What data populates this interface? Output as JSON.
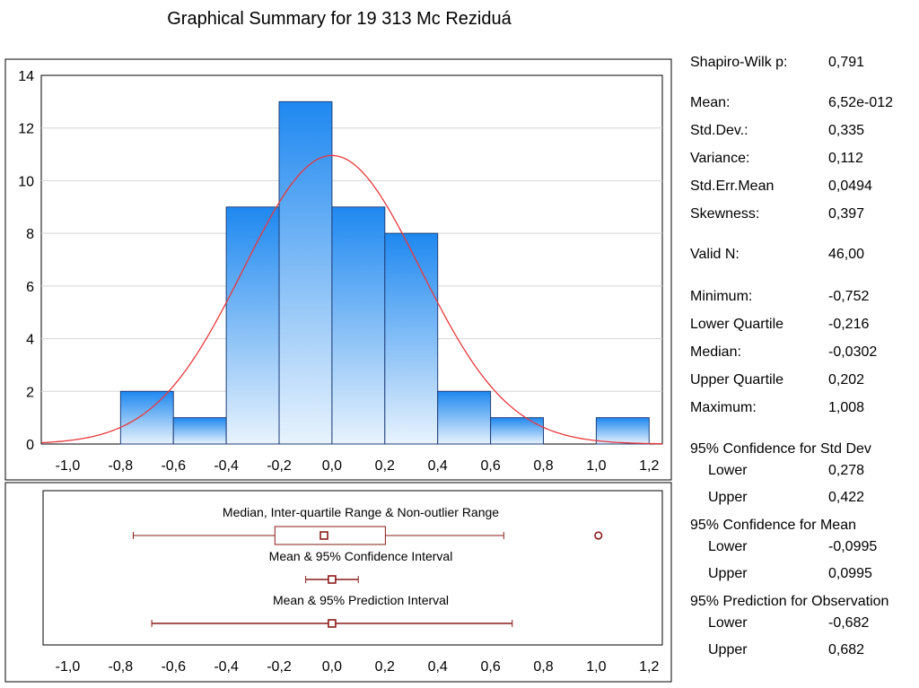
{
  "title": "Graphical Summary for 19 313 Mc Reziduá",
  "chart_data": [
    {
      "type": "bar",
      "bin_edges": [
        -0.8,
        -0.6,
        -0.4,
        -0.2,
        0.0,
        0.2,
        0.4,
        0.6,
        0.8,
        1.0,
        1.2
      ],
      "values": [
        2,
        1,
        9,
        13,
        9,
        8,
        2,
        1,
        0,
        1
      ],
      "xlim": [
        -1.1,
        1.25
      ],
      "ylim": [
        0,
        14
      ],
      "x_ticks": [
        "-1,0",
        "-0,8",
        "-0,6",
        "-0,4",
        "-0,2",
        "0,0",
        "0,2",
        "0,4",
        "0,6",
        "0,8",
        "1,0",
        "1,2"
      ],
      "y_ticks": [
        "0",
        "2",
        "4",
        "6",
        "8",
        "10",
        "12",
        "14"
      ],
      "grid": true,
      "bar_color": "#1e88f0",
      "curve": {
        "type": "normal",
        "mean": 0.0,
        "sd": 0.335,
        "n": 46,
        "bin_width": 0.2,
        "color": "#e8383c"
      }
    },
    {
      "type": "box",
      "xlim": [
        -1.1,
        1.25
      ],
      "x_ticks": [
        "-1,0",
        "-0,8",
        "-0,6",
        "-0,4",
        "-0,2",
        "0,0",
        "0,2",
        "0,4",
        "0,6",
        "0,8",
        "1,0",
        "1,2"
      ],
      "color": "#8b1a1a",
      "rows": [
        {
          "label": "Median, Inter-quartile Range & Non-outlier Range",
          "center": -0.0302,
          "box": [
            -0.216,
            0.202
          ],
          "whiskers": [
            -0.752,
            0.65
          ],
          "outliers": [
            1.008
          ]
        },
        {
          "label": "Mean & 95% Confidence Interval",
          "center": 0.0,
          "box": [
            -0.015,
            0.015
          ],
          "whiskers": [
            -0.0995,
            0.0995
          ],
          "outliers": []
        },
        {
          "label": "Mean & 95% Prediction Interval",
          "center": 0.0,
          "box": [
            -0.015,
            0.015
          ],
          "whiskers": [
            -0.682,
            0.682
          ],
          "outliers": []
        }
      ]
    }
  ],
  "stats": {
    "shapiro_label": "Shapiro-Wilk p:",
    "shapiro_value": "0,791",
    "mean_label": "Mean:",
    "mean_value": "6,52e-012",
    "std_label": "Std.Dev.:",
    "std_value": "0,335",
    "var_label": "Variance:",
    "var_value": "0,112",
    "sem_label": "Std.Err.Mean",
    "sem_value": "0,0494",
    "skew_label": "Skewness:",
    "skew_value": "0,397",
    "n_label": "Valid N:",
    "n_value": "46,00",
    "min_label": "Minimum:",
    "min_value": "-0,752",
    "lq_label": "Lower Quartile",
    "lq_value": "-0,216",
    "med_label": "Median:",
    "med_value": "-0,0302",
    "uq_label": "Upper Quartile",
    "uq_value": "0,202",
    "max_label": "Maximum:",
    "max_value": "1,008",
    "ci_sd_head": "95% Confidence for Std Dev",
    "ci_sd_lower_label": "Lower",
    "ci_sd_lower_value": "0,278",
    "ci_sd_upper_label": "Upper",
    "ci_sd_upper_value": "0,422",
    "ci_mean_head": "95% Confidence for Mean",
    "ci_mean_lower_label": "Lower",
    "ci_mean_lower_value": "-0,0995",
    "ci_mean_upper_label": "Upper",
    "ci_mean_upper_value": "0,0995",
    "pi_head": "95% Prediction for Observation",
    "pi_lower_label": "Lower",
    "pi_lower_value": "-0,682",
    "pi_upper_label": "Upper",
    "pi_upper_value": "0,682"
  }
}
